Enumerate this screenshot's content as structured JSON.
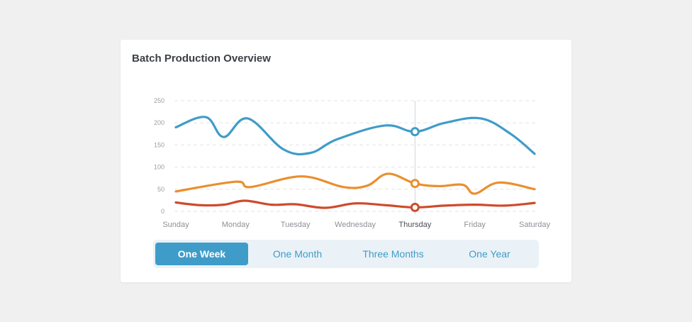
{
  "card": {
    "title": "Batch Production Overview"
  },
  "range_buttons": [
    {
      "label": "One Week",
      "active": true
    },
    {
      "label": "One Month",
      "active": false
    },
    {
      "label": "Three Months",
      "active": false
    },
    {
      "label": "One Year",
      "active": false
    }
  ],
  "colors": {
    "blue": "#3f9cc9",
    "orange": "#ea8f2e",
    "red": "#cf4a2c",
    "grid": "#e2e4e6"
  },
  "chart_data": {
    "type": "line",
    "title": "Batch Production Overview",
    "xlabel": "",
    "ylabel": "",
    "categories": [
      "Sunday",
      "Monday",
      "Tuesday",
      "Wednesday",
      "Thursday",
      "Friday",
      "Saturday"
    ],
    "highlighted_category": "Thursday",
    "ylim": [
      0,
      250
    ],
    "yticks": [
      0,
      50,
      100,
      150,
      200,
      250
    ],
    "grid": true,
    "smooth": true,
    "series": [
      {
        "color": "#3f9cc9",
        "x": [
          0,
          0.5,
          0.8,
          1.2,
          1.8,
          2.25,
          2.7,
          3.5,
          4.0,
          4.5,
          5.1,
          5.6,
          6.0
        ],
        "y": [
          190,
          213,
          168,
          210,
          140,
          132,
          163,
          194,
          180,
          200,
          210,
          175,
          130
        ]
      },
      {
        "color": "#ea8f2e",
        "x": [
          0,
          1.0,
          1.25,
          2.1,
          2.8,
          3.2,
          3.55,
          4.0,
          4.4,
          4.8,
          5.0,
          5.4,
          6.0
        ],
        "y": [
          45,
          67,
          55,
          79,
          55,
          58,
          85,
          63,
          57,
          60,
          40,
          65,
          50
        ]
      },
      {
        "color": "#cf4a2c",
        "x": [
          0,
          0.4,
          0.8,
          1.15,
          1.6,
          2.0,
          2.5,
          3.0,
          3.5,
          4.0,
          4.5,
          5.0,
          5.5,
          6.0
        ],
        "y": [
          20,
          14,
          15,
          24,
          15,
          16,
          8,
          18,
          14,
          9,
          13,
          15,
          13,
          19
        ]
      }
    ],
    "markers": [
      {
        "series": 0,
        "x": 4,
        "y": 180
      },
      {
        "series": 1,
        "x": 4,
        "y": 63
      },
      {
        "series": 2,
        "x": 4,
        "y": 9
      }
    ]
  }
}
